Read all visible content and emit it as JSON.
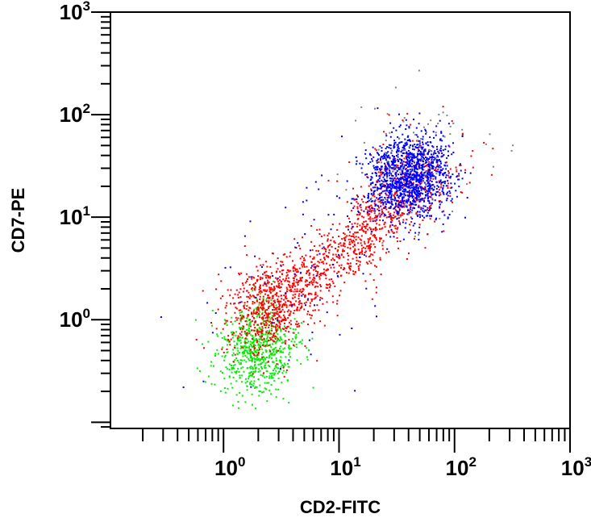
{
  "chart_data": {
    "type": "scatter",
    "xlabel": "CD2-FITC",
    "ylabel": "CD7-PE",
    "x_scale": "log",
    "y_scale": "log",
    "xlim": [
      0.105,
      1000
    ],
    "ylim": [
      0.087,
      1000
    ],
    "x_major_ticks": [
      1,
      10,
      100,
      1000
    ],
    "y_major_ticks": [
      1,
      10,
      100,
      1000
    ],
    "x_tick_labels": [
      {
        "base": "10",
        "exp": "0"
      },
      {
        "base": "10",
        "exp": "1"
      },
      {
        "base": "10",
        "exp": "2"
      },
      {
        "base": "10",
        "exp": "3"
      }
    ],
    "y_tick_labels": [
      {
        "base": "10",
        "exp": "0"
      },
      {
        "base": "10",
        "exp": "1"
      },
      {
        "base": "10",
        "exp": "2"
      },
      {
        "base": "10",
        "exp": "3"
      }
    ],
    "grid": false,
    "legend": "none",
    "series": [
      {
        "color": "#00ee00",
        "populations": [
          {
            "center": [
              1.9,
              0.5
            ],
            "log_sd": [
              0.17,
              0.22
            ],
            "corr": 0.1,
            "count": 700
          }
        ]
      },
      {
        "color": "#ff0000",
        "populations": [
          {
            "center": [
              2.5,
              1.5
            ],
            "log_sd": [
              0.2,
              0.25
            ],
            "corr": 0.3,
            "count": 650
          },
          {
            "center": [
              12,
              5
            ],
            "log_sd": [
              0.36,
              0.36
            ],
            "corr": 0.85,
            "count": 700
          },
          {
            "center": [
              35,
              20
            ],
            "log_sd": [
              0.25,
              0.25
            ],
            "corr": 0.3,
            "count": 250
          }
        ]
      },
      {
        "color": "#0000ff",
        "populations": [
          {
            "center": [
              40,
              25
            ],
            "log_sd": [
              0.18,
              0.2
            ],
            "corr": 0.1,
            "count": 1300
          },
          {
            "center": [
              8,
              4
            ],
            "log_sd": [
              0.6,
              0.6
            ],
            "corr": 0.5,
            "count": 90
          }
        ]
      },
      {
        "color": "#808080",
        "populations": [
          {
            "center": [
              45,
              30
            ],
            "log_sd": [
              0.3,
              0.3
            ],
            "corr": 0.2,
            "count": 100
          }
        ]
      }
    ]
  }
}
